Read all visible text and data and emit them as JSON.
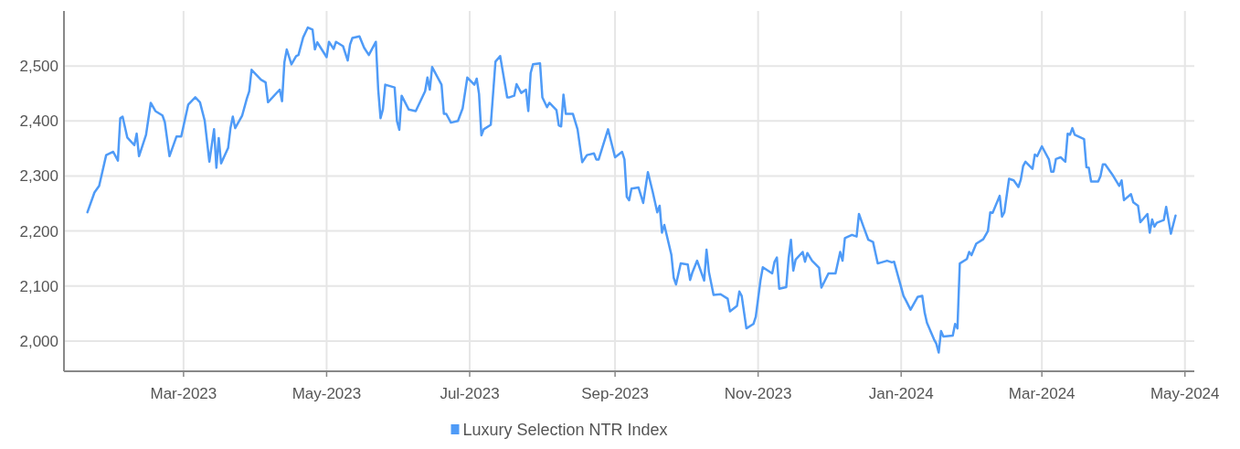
{
  "chart_data": {
    "type": "line",
    "x": [
      "2023-01-19",
      "2023-01-22",
      "2023-01-24",
      "2023-01-27",
      "2023-01-30",
      "2023-02-01",
      "2023-02-02",
      "2023-02-03",
      "2023-02-05",
      "2023-02-08",
      "2023-02-09",
      "2023-02-10",
      "2023-02-13",
      "2023-02-15",
      "2023-02-17",
      "2023-02-20",
      "2023-02-21",
      "2023-02-23",
      "2023-02-26",
      "2023-02-28",
      "2023-03-03",
      "2023-03-06",
      "2023-03-08",
      "2023-03-10",
      "2023-03-12",
      "2023-03-14",
      "2023-03-15",
      "2023-03-16",
      "2023-03-17",
      "2023-03-20",
      "2023-03-21",
      "2023-03-22",
      "2023-03-23",
      "2023-03-26",
      "2023-03-28",
      "2023-03-29",
      "2023-03-30",
      "2023-04-03",
      "2023-04-05",
      "2023-04-06",
      "2023-04-11",
      "2023-04-12",
      "2023-04-13",
      "2023-04-14",
      "2023-04-16",
      "2023-04-18",
      "2023-04-19",
      "2023-04-21",
      "2023-04-23",
      "2023-04-25",
      "2023-04-26",
      "2023-04-27",
      "2023-05-01",
      "2023-05-02",
      "2023-05-04",
      "2023-05-05",
      "2023-05-08",
      "2023-05-10",
      "2023-05-11",
      "2023-05-12",
      "2023-05-15",
      "2023-05-17",
      "2023-05-19",
      "2023-05-22",
      "2023-05-23",
      "2023-05-24",
      "2023-05-25",
      "2023-05-26",
      "2023-05-30",
      "2023-05-31",
      "2023-06-01",
      "2023-06-02",
      "2023-06-05",
      "2023-06-08",
      "2023-06-12",
      "2023-06-13",
      "2023-06-14",
      "2023-06-15",
      "2023-06-19",
      "2023-06-20",
      "2023-06-21",
      "2023-06-23",
      "2023-06-26",
      "2023-06-28",
      "2023-06-30",
      "2023-07-03",
      "2023-07-04",
      "2023-07-05",
      "2023-07-06",
      "2023-07-07",
      "2023-07-10",
      "2023-07-12",
      "2023-07-14",
      "2023-07-17",
      "2023-07-18",
      "2023-07-20",
      "2023-07-21",
      "2023-07-23",
      "2023-07-25",
      "2023-07-26",
      "2023-07-27",
      "2023-07-28",
      "2023-07-31",
      "2023-08-01",
      "2023-08-03",
      "2023-08-04",
      "2023-08-07",
      "2023-08-08",
      "2023-08-09",
      "2023-08-10",
      "2023-08-11",
      "2023-08-14",
      "2023-08-16",
      "2023-08-18",
      "2023-08-20",
      "2023-08-23",
      "2023-08-24",
      "2023-08-25",
      "2023-08-29",
      "2023-09-01",
      "2023-09-04",
      "2023-09-05",
      "2023-09-06",
      "2023-09-07",
      "2023-09-08",
      "2023-09-11",
      "2023-09-13",
      "2023-09-15",
      "2023-09-17",
      "2023-09-19",
      "2023-09-20",
      "2023-09-21",
      "2023-09-22",
      "2023-09-25",
      "2023-09-26",
      "2023-09-27",
      "2023-09-29",
      "2023-10-02",
      "2023-10-03",
      "2023-10-04",
      "2023-10-06",
      "2023-10-09",
      "2023-10-10",
      "2023-10-11",
      "2023-10-13",
      "2023-10-16",
      "2023-10-19",
      "2023-10-20",
      "2023-10-23",
      "2023-10-24",
      "2023-10-25",
      "2023-10-27",
      "2023-10-30",
      "2023-10-31",
      "2023-11-02",
      "2023-11-03",
      "2023-11-07",
      "2023-11-08",
      "2023-11-09",
      "2023-11-10",
      "2023-11-13",
      "2023-11-14",
      "2023-11-15",
      "2023-11-16",
      "2023-11-17",
      "2023-11-20",
      "2023-11-21",
      "2023-11-22",
      "2023-11-24",
      "2023-11-27",
      "2023-11-28",
      "2023-12-01",
      "2023-12-04",
      "2023-12-06",
      "2023-12-07",
      "2023-12-08",
      "2023-12-11",
      "2023-12-13",
      "2023-12-14",
      "2023-12-16",
      "2023-12-18",
      "2023-12-20",
      "2023-12-22",
      "2023-12-26",
      "2023-12-28",
      "2023-12-29",
      "2024-01-02",
      "2024-01-03",
      "2024-01-05",
      "2024-01-08",
      "2024-01-10",
      "2024-01-11",
      "2024-01-12",
      "2024-01-15",
      "2024-01-16",
      "2024-01-17",
      "2024-01-18",
      "2024-01-19",
      "2024-01-23",
      "2024-01-24",
      "2024-01-25",
      "2024-01-26",
      "2024-01-29",
      "2024-01-30",
      "2024-01-31",
      "2024-02-02",
      "2024-02-05",
      "2024-02-07",
      "2024-02-08",
      "2024-02-09",
      "2024-02-12",
      "2024-02-13",
      "2024-02-14",
      "2024-02-16",
      "2024-02-18",
      "2024-02-20",
      "2024-02-21",
      "2024-02-22",
      "2024-02-23",
      "2024-02-26",
      "2024-02-27",
      "2024-02-28",
      "2024-03-01",
      "2024-03-04",
      "2024-03-05",
      "2024-03-06",
      "2024-03-07",
      "2024-03-09",
      "2024-03-11",
      "2024-03-12",
      "2024-03-13",
      "2024-03-14",
      "2024-03-15",
      "2024-03-19",
      "2024-03-20",
      "2024-03-21",
      "2024-03-22",
      "2024-03-25",
      "2024-03-26",
      "2024-03-27",
      "2024-03-28",
      "2024-03-31",
      "2024-04-02",
      "2024-04-03",
      "2024-04-04",
      "2024-04-05",
      "2024-04-08",
      "2024-04-09",
      "2024-04-11",
      "2024-04-12",
      "2024-04-15",
      "2024-04-16",
      "2024-04-17",
      "2024-04-18",
      "2024-04-19",
      "2024-04-22",
      "2024-04-23",
      "2024-04-25",
      "2024-04-27"
    ],
    "series": [
      {
        "name": "Luxury Selection NTR Index",
        "color": "#4f9bf7",
        "values": [
          2234,
          2270,
          2282,
          2338,
          2344,
          2328,
          2405,
          2408,
          2370,
          2356,
          2377,
          2336,
          2375,
          2433,
          2418,
          2410,
          2398,
          2336,
          2372,
          2372,
          2430,
          2443,
          2434,
          2401,
          2326,
          2385,
          2315,
          2369,
          2323,
          2351,
          2387,
          2408,
          2387,
          2410,
          2441,
          2454,
          2493,
          2475,
          2470,
          2434,
          2457,
          2436,
          2507,
          2530,
          2503,
          2518,
          2520,
          2552,
          2570,
          2566,
          2530,
          2543,
          2516,
          2544,
          2531,
          2544,
          2536,
          2510,
          2539,
          2551,
          2554,
          2533,
          2520,
          2544,
          2457,
          2405,
          2421,
          2466,
          2461,
          2400,
          2384,
          2446,
          2421,
          2418,
          2454,
          2479,
          2457,
          2498,
          2466,
          2413,
          2413,
          2397,
          2400,
          2423,
          2479,
          2466,
          2477,
          2449,
          2374,
          2385,
          2393,
          2508,
          2518,
          2443,
          2443,
          2446,
          2467,
          2451,
          2457,
          2418,
          2487,
          2503,
          2505,
          2443,
          2425,
          2433,
          2420,
          2392,
          2390,
          2448,
          2413,
          2413,
          2385,
          2325,
          2338,
          2341,
          2330,
          2330,
          2385,
          2334,
          2344,
          2330,
          2262,
          2256,
          2277,
          2279,
          2251,
          2307,
          2272,
          2234,
          2246,
          2197,
          2211,
          2157,
          2115,
          2103,
          2141,
          2139,
          2111,
          2125,
          2146,
          2110,
          2166,
          2126,
          2084,
          2085,
          2077,
          2054,
          2064,
          2090,
          2082,
          2023,
          2031,
          2044,
          2110,
          2134,
          2123,
          2144,
          2152,
          2095,
          2098,
          2151,
          2184,
          2128,
          2148,
          2162,
          2144,
          2160,
          2146,
          2133,
          2097,
          2123,
          2123,
          2162,
          2146,
          2187,
          2193,
          2190,
          2231,
          2207,
          2184,
          2180,
          2141,
          2146,
          2143,
          2144,
          2082,
          2074,
          2057,
          2080,
          2082,
          2052,
          2033,
          2003,
          1995,
          1979,
          2018,
          2008,
          2010,
          2031,
          2023,
          2141,
          2149,
          2162,
          2156,
          2177,
          2185,
          2200,
          2234,
          2233,
          2264,
          2226,
          2234,
          2295,
          2292,
          2280,
          2293,
          2318,
          2326,
          2313,
          2339,
          2336,
          2354,
          2330,
          2308,
          2308,
          2331,
          2334,
          2326,
          2377,
          2375,
          2387,
          2375,
          2367,
          2316,
          2315,
          2290,
          2290,
          2300,
          2321,
          2321,
          2303,
          2289,
          2282,
          2292,
          2256,
          2267,
          2252,
          2246,
          2216,
          2231,
          2197,
          2221,
          2208,
          2215,
          2220,
          2244,
          2195,
          2228
        ]
      }
    ],
    "xlim": [
      "2023-01-09",
      "2024-05-05"
    ],
    "xticks": [
      {
        "value": "2023-03-01",
        "label": "Mar-2023"
      },
      {
        "value": "2023-05-01",
        "label": "May-2023"
      },
      {
        "value": "2023-07-01",
        "label": "Jul-2023"
      },
      {
        "value": "2023-09-01",
        "label": "Sep-2023"
      },
      {
        "value": "2023-11-01",
        "label": "Nov-2023"
      },
      {
        "value": "2024-01-01",
        "label": "Jan-2024"
      },
      {
        "value": "2024-03-01",
        "label": "Mar-2024"
      },
      {
        "value": "2024-05-01",
        "label": "May-2024"
      }
    ],
    "ylim": [
      1945,
      2600
    ],
    "yticks": [
      {
        "value": 2000,
        "label": "2,000"
      },
      {
        "value": 2100,
        "label": "2,100"
      },
      {
        "value": 2200,
        "label": "2,200"
      },
      {
        "value": 2300,
        "label": "2,300"
      },
      {
        "value": 2400,
        "label": "2,400"
      },
      {
        "value": 2500,
        "label": "2,500"
      }
    ],
    "grid": true,
    "legend": "bottom"
  }
}
